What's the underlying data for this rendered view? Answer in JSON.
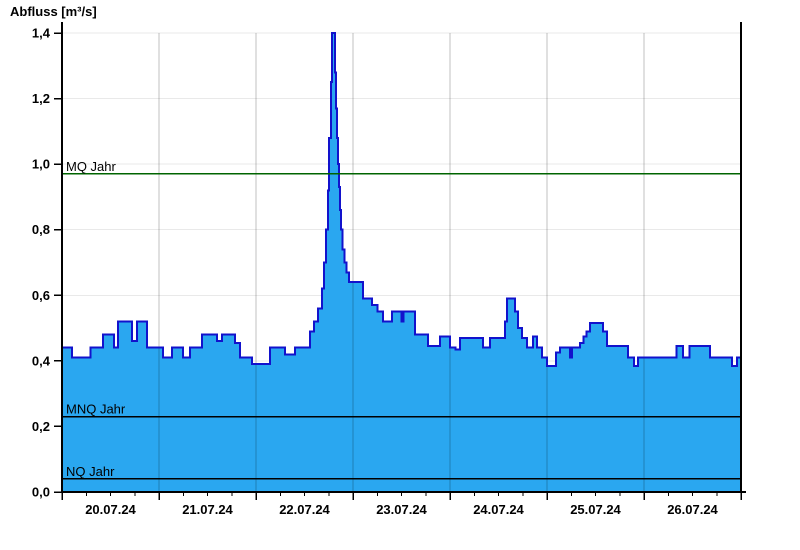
{
  "chart_data": {
    "type": "area",
    "title": "Abfluss [m³/s]",
    "ylabel": "Abfluss [m³/s]",
    "unit": "m³/s",
    "ylim": [
      0,
      1.4
    ],
    "grid": true,
    "legend": "none",
    "y_ticks": [
      {
        "value": 0.0,
        "label": "0,0"
      },
      {
        "value": 0.2,
        "label": "0,2"
      },
      {
        "value": 0.4,
        "label": "0,4"
      },
      {
        "value": 0.6,
        "label": "0,6"
      },
      {
        "value": 0.8,
        "label": "0,8"
      },
      {
        "value": 1.0,
        "label": "1,0"
      },
      {
        "value": 1.2,
        "label": "1,2"
      },
      {
        "value": 1.4,
        "label": "1,4"
      }
    ],
    "x_axis": {
      "hours_total": 168,
      "minor_tick_hours": 6,
      "days": [
        {
          "label": "20.07.24"
        },
        {
          "label": "21.07.24"
        },
        {
          "label": "22.07.24"
        },
        {
          "label": "23.07.24"
        },
        {
          "label": "24.07.24"
        },
        {
          "label": "25.07.24"
        },
        {
          "label": "26.07.24"
        }
      ]
    },
    "reference_lines": [
      {
        "label": "MQ Jahr",
        "value": 0.97,
        "color": "#006400"
      },
      {
        "label": "MNQ Jahr",
        "value": 0.23,
        "color": "#000000"
      },
      {
        "label": "NQ Jahr",
        "value": 0.04,
        "color": "#000000"
      }
    ],
    "series": [
      {
        "name": "Abfluss",
        "fill": "#2aa7f0",
        "stroke": "#1212cc",
        "step_points": [
          [
            0,
            0.44
          ],
          [
            2.5,
            0.41
          ],
          [
            7,
            0.44
          ],
          [
            10.1,
            0.48
          ],
          [
            12.9,
            0.44
          ],
          [
            13.9,
            0.52
          ],
          [
            17.3,
            0.46
          ],
          [
            18.6,
            0.52
          ],
          [
            21,
            0.44
          ],
          [
            25,
            0.41
          ],
          [
            27.2,
            0.44
          ],
          [
            29.9,
            0.41
          ],
          [
            31.7,
            0.44
          ],
          [
            34.6,
            0.48
          ],
          [
            38.3,
            0.46
          ],
          [
            39.6,
            0.48
          ],
          [
            42.8,
            0.455
          ],
          [
            44,
            0.41
          ],
          [
            47,
            0.39
          ],
          [
            51.5,
            0.44
          ],
          [
            55.2,
            0.42
          ],
          [
            57.6,
            0.44
          ],
          [
            61.4,
            0.49
          ],
          [
            62.4,
            0.52
          ],
          [
            63.3,
            0.56
          ],
          [
            64.3,
            0.62
          ],
          [
            64.8,
            0.7
          ],
          [
            65.3,
            0.8
          ],
          [
            65.8,
            0.92
          ],
          [
            66.1,
            1.08
          ],
          [
            66.5,
            1.25
          ],
          [
            66.75,
            1.4
          ],
          [
            67.5,
            1.28
          ],
          [
            67.75,
            1.17
          ],
          [
            68,
            1.08
          ],
          [
            68.25,
            1.0
          ],
          [
            68.5,
            0.93
          ],
          [
            68.75,
            0.86
          ],
          [
            69,
            0.8
          ],
          [
            69.4,
            0.74
          ],
          [
            69.9,
            0.7
          ],
          [
            70.4,
            0.67
          ],
          [
            71,
            0.64
          ],
          [
            74.5,
            0.59
          ],
          [
            76.7,
            0.57
          ],
          [
            78,
            0.55
          ],
          [
            79.4,
            0.52
          ],
          [
            81.7,
            0.55
          ],
          [
            84,
            0.52
          ],
          [
            84.5,
            0.55
          ],
          [
            87.3,
            0.48
          ],
          [
            90.6,
            0.445
          ],
          [
            93.5,
            0.475
          ],
          [
            96,
            0.44
          ],
          [
            97.3,
            0.435
          ],
          [
            98.5,
            0.47
          ],
          [
            104.2,
            0.44
          ],
          [
            105.9,
            0.47
          ],
          [
            109.6,
            0.52
          ],
          [
            110.1,
            0.59
          ],
          [
            112.1,
            0.55
          ],
          [
            112.8,
            0.5
          ],
          [
            113.8,
            0.47
          ],
          [
            115,
            0.44
          ],
          [
            116.5,
            0.475
          ],
          [
            117.5,
            0.44
          ],
          [
            118.8,
            0.41
          ],
          [
            120,
            0.385
          ],
          [
            122.2,
            0.425
          ],
          [
            123.2,
            0.44
          ],
          [
            125.7,
            0.41
          ],
          [
            126.2,
            0.44
          ],
          [
            128.2,
            0.455
          ],
          [
            129,
            0.475
          ],
          [
            129.8,
            0.49
          ],
          [
            130.6,
            0.515
          ],
          [
            133.8,
            0.49
          ],
          [
            134.8,
            0.445
          ],
          [
            140,
            0.41
          ],
          [
            141.5,
            0.385
          ],
          [
            142.5,
            0.41
          ],
          [
            152.1,
            0.445
          ],
          [
            153.6,
            0.41
          ],
          [
            155.3,
            0.445
          ],
          [
            160.3,
            0.41
          ],
          [
            165.8,
            0.385
          ],
          [
            167,
            0.41
          ],
          [
            168,
            0.41
          ]
        ]
      }
    ],
    "colors": {
      "series_fill": "#2aa7f0",
      "series_stroke": "#1212cc",
      "mq_line": "#006400",
      "gridline": "#e9e9e9"
    }
  }
}
